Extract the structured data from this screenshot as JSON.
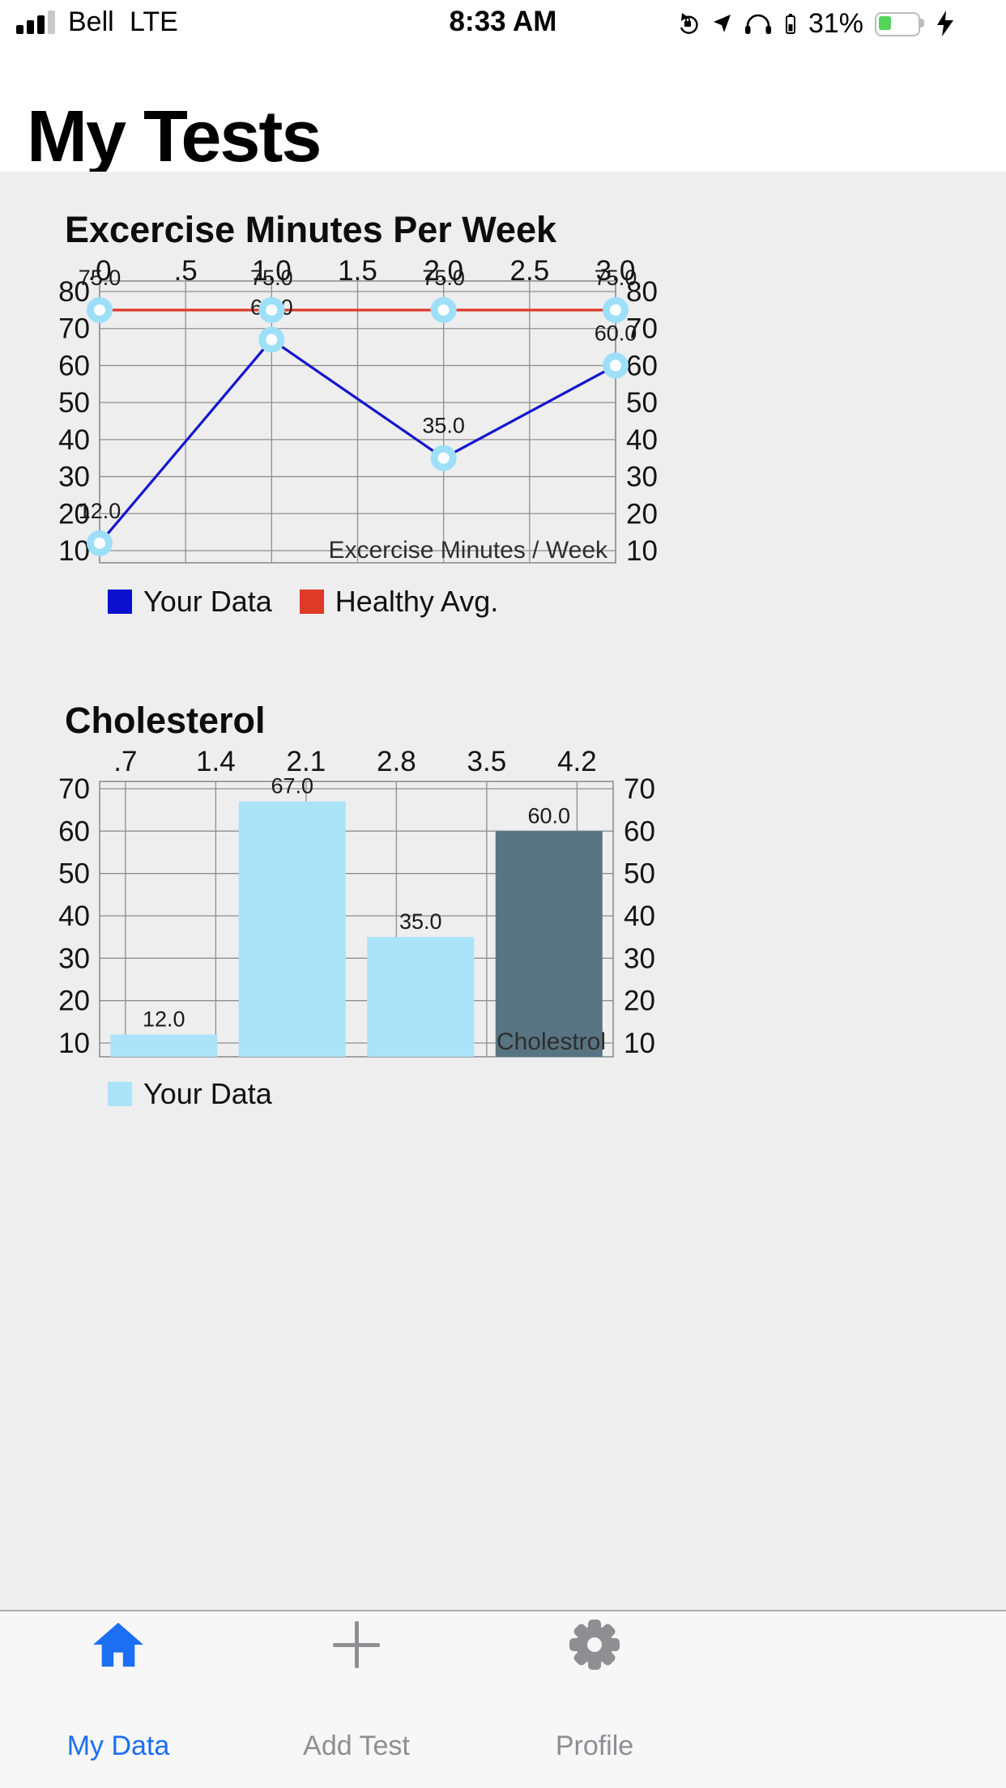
{
  "status_bar": {
    "carrier": "Bell",
    "network": "LTE",
    "time": "8:33 AM",
    "battery_percent": "31%"
  },
  "page": {
    "title": "My Tests"
  },
  "chart_data": [
    {
      "type": "line",
      "title": "Excercise Minutes Per Week",
      "x_ticks": [
        0,
        0.5,
        1,
        1.5,
        2,
        2.5,
        3
      ],
      "x_tick_labels": [
        ".0",
        ".5",
        "1.0",
        "1.5",
        "2.0",
        "2.5",
        "3.0"
      ],
      "xlim": [
        0,
        3
      ],
      "y_ticks": [
        10,
        20,
        30,
        40,
        50,
        60,
        70,
        80
      ],
      "axis_label": "Excercise Minutes / Week",
      "marker_color": "#9EDFF8",
      "series": [
        {
          "name": "Your Data",
          "color": "#1414CF",
          "x": [
            0,
            1,
            2,
            3
          ],
          "values": [
            12,
            67,
            35,
            60
          ],
          "point_labels": [
            "12.0",
            "67.0",
            "35.0",
            "60.0"
          ]
        },
        {
          "name": "Healthy Avg.",
          "color": "#DE3A28",
          "x": [
            0,
            1,
            2,
            3
          ],
          "values": [
            75,
            75,
            75,
            75
          ],
          "point_labels": [
            "75.0",
            "75.0",
            "75.0",
            "75.0"
          ]
        }
      ],
      "legend": [
        {
          "label": "Your Data",
          "color": "#0B10CF"
        },
        {
          "label": "Healthy Avg.",
          "color": "#DE3A28"
        }
      ]
    },
    {
      "type": "bar",
      "title": "Cholesterol",
      "x_ticks": [
        0.7,
        1.4,
        2.1,
        2.8,
        3.5,
        4.2
      ],
      "x_tick_labels": [
        ".7",
        "1.4",
        "2.1",
        "2.8",
        "3.5",
        "4.2"
      ],
      "xlim": [
        0.5,
        4.48
      ],
      "y_ticks": [
        10,
        20,
        30,
        40,
        50,
        60,
        70
      ],
      "axis_label": "Cholestrol",
      "values": [
        12,
        67,
        35,
        60
      ],
      "bar_labels": [
        "12.0",
        "67.0",
        "35.0",
        "60.0"
      ],
      "bar_colors": [
        "#ABE3F9",
        "#ABE3F9",
        "#ABE3F9",
        "#587482"
      ],
      "legend": [
        {
          "label": "Your Data",
          "color": "#ABE3F9"
        }
      ]
    }
  ],
  "tab_bar": {
    "active_color": "#1C6EF2",
    "inactive_color": "#8E8E93",
    "items": [
      {
        "label": "My Data",
        "icon": "home-icon",
        "active": true
      },
      {
        "label": "Add Test",
        "icon": "plus-icon",
        "active": false
      },
      {
        "label": "Profile",
        "icon": "gear-icon",
        "active": false
      }
    ]
  }
}
